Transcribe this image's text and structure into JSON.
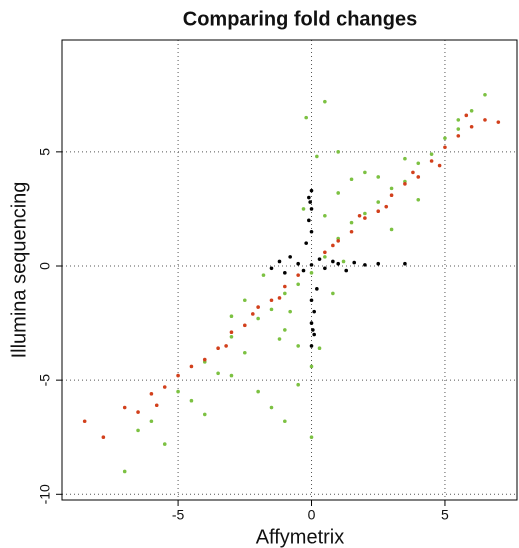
{
  "chart_data": {
    "type": "scatter",
    "title": "Comparing fold changes",
    "x_label": "Affymetrix",
    "y_label": "Illumina sequencing",
    "xlim": [
      -9.35,
      7.7
    ],
    "ylim": [
      -10.25,
      9.9
    ],
    "xticks": [
      -5,
      0,
      5
    ],
    "yticks": [
      -10,
      -5,
      0,
      5
    ],
    "grid": true,
    "series": [
      {
        "color": "#7cc142",
        "x": [
          -7,
          -6.5,
          -6,
          -5.5,
          -5,
          -4.5,
          -4,
          -3.5,
          -3,
          -2.5,
          -2,
          -1.5,
          -1,
          -0.5,
          0,
          0.5,
          1,
          1.5,
          2,
          2.5,
          3,
          3.5,
          4,
          4.5,
          5,
          5.5,
          6,
          6.5,
          -2,
          -1.5,
          -1,
          -0.5,
          0,
          0.3,
          -0.3,
          0.2,
          -0.2,
          0.5,
          1,
          1.5,
          -1,
          -0.5,
          0,
          0.5,
          1,
          -2.5,
          -3,
          -1.8,
          2,
          3,
          -4,
          -3,
          0.8,
          -0.8,
          1.2,
          2.5,
          4,
          5.5,
          3.5,
          -1.2
        ],
        "values": [
          -9,
          -7.2,
          -6.8,
          -7.8,
          -5.5,
          -5.9,
          -4.2,
          -4.7,
          -3.1,
          -3.8,
          -2.3,
          -1.9,
          -1.2,
          -0.8,
          -0.3,
          0.4,
          1.2,
          1.9,
          2.3,
          2.8,
          3.4,
          3.7,
          4.5,
          4.9,
          5.6,
          6,
          6.8,
          7.5,
          -5.5,
          -6.2,
          -6.8,
          -5.2,
          -7.5,
          -3.6,
          2.5,
          4.8,
          6.5,
          7.2,
          5,
          3.8,
          -2.8,
          -3.5,
          -4.4,
          2.2,
          3.2,
          -1.5,
          -4.8,
          -0.4,
          4.1,
          1.6,
          -6.5,
          -2.2,
          -1.2,
          -2,
          0.2,
          3.9,
          2.9,
          6.4,
          4.7,
          -3.2
        ]
      },
      {
        "color": "#d2401c",
        "x": [
          -8.5,
          -7.8,
          -7,
          -6.5,
          -6,
          -5.5,
          -5,
          -4.5,
          -4,
          -3.5,
          -3,
          -2.5,
          -2,
          -1.5,
          -1,
          -0.5,
          0.5,
          1,
          1.5,
          2,
          2.5,
          3,
          3.5,
          4,
          4.5,
          5,
          5.5,
          6,
          6.5,
          7,
          -3.2,
          -2.2,
          -1.2,
          0.8,
          1.8,
          2.8,
          3.8,
          4.8,
          5.8,
          -5.8
        ],
        "values": [
          -6.8,
          -7.5,
          -6.2,
          -6.4,
          -5.6,
          -5.3,
          -4.8,
          -4.4,
          -4.1,
          -3.6,
          -2.9,
          -2.6,
          -1.8,
          -1.5,
          -0.9,
          -0.4,
          0.6,
          1.1,
          1.5,
          2.1,
          2.4,
          3.1,
          3.6,
          3.9,
          4.6,
          5.2,
          5.7,
          6.1,
          6.4,
          6.3,
          -3.5,
          -2.1,
          -1.4,
          0.9,
          2.2,
          2.6,
          4.1,
          4.4,
          6.6,
          -6.1
        ]
      },
      {
        "color": "#000000",
        "x": [
          -1.5,
          -1.2,
          -1,
          -0.8,
          -0.5,
          -0.3,
          0,
          0.3,
          0.5,
          0.8,
          1,
          1.3,
          1.6,
          2,
          2.5,
          3.5,
          0,
          0,
          0,
          0,
          0,
          0,
          0.1,
          -0.1,
          0.1,
          -0.1,
          0.2,
          -0.2,
          0.05,
          -0.05
        ],
        "values": [
          -0.1,
          0.2,
          -0.3,
          0.4,
          0.1,
          -0.2,
          0.05,
          0.3,
          -0.1,
          0.2,
          0.1,
          -0.2,
          0.15,
          0.05,
          0.1,
          0.1,
          -3.5,
          -2.5,
          -1.5,
          1.5,
          2.5,
          3.3,
          -3,
          3,
          -2,
          2,
          -1,
          1,
          -2.8,
          2.8
        ]
      }
    ]
  }
}
